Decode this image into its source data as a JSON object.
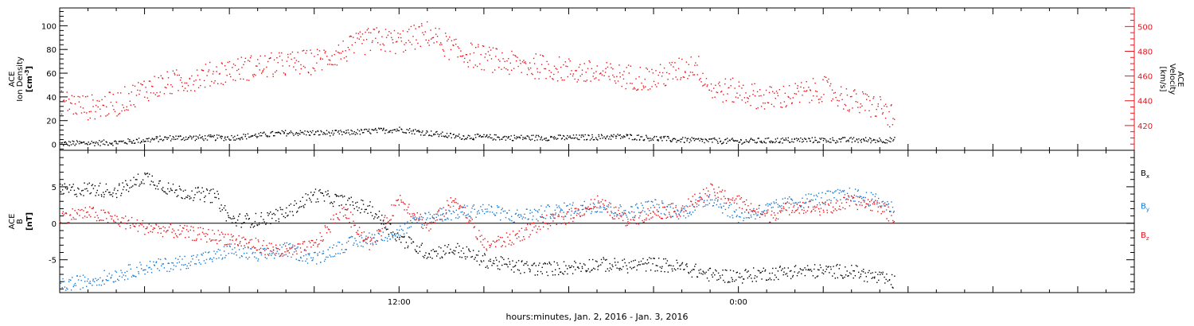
{
  "xaxis_label": "hours:minutes, Jan.  2, 2016 - Jan.  3, 2016",
  "chart_data": [
    {
      "type": "scatter",
      "title": "",
      "ylabel_lines": [
        "ACE",
        "Ion Density"
      ],
      "yunit": "[cm",
      "yunit_sup": "-3",
      "yunit_end": "]",
      "y2label_lines": [
        "ACE",
        "Velocity"
      ],
      "y2unit": "[km/s]",
      "x_ticks": [
        "12:00",
        "0:00"
      ],
      "xlim_hours": [
        0,
        38
      ],
      "ylim": [
        -5,
        115
      ],
      "y_ticks": [
        0,
        20,
        40,
        60,
        80,
        100
      ],
      "y2lim": [
        400,
        515
      ],
      "y2_ticks": [
        420,
        440,
        460,
        480,
        500
      ],
      "grid": false,
      "series": [
        {
          "name": "",
          "axis": "left",
          "color": "#000000",
          "x_hours": [
            0,
            2,
            4,
            6,
            8,
            10,
            12,
            14,
            16,
            18,
            20,
            22,
            24,
            26,
            29.5
          ],
          "y": [
            1,
            2,
            6,
            6,
            10,
            10,
            13,
            7,
            6,
            6,
            7,
            4,
            3,
            4,
            4
          ]
        },
        {
          "name": "",
          "axis": "right",
          "color": "#e8141c",
          "x_hours": [
            0,
            1,
            2,
            3,
            4,
            5,
            6,
            7,
            8,
            9,
            10,
            11,
            12,
            13,
            14,
            15,
            16,
            17,
            18,
            19,
            20,
            21,
            22,
            22.5,
            23,
            24,
            25,
            26,
            27,
            28,
            29,
            29.5
          ],
          "y": [
            440,
            435,
            438,
            450,
            455,
            460,
            465,
            468,
            470,
            472,
            480,
            490,
            488,
            495,
            480,
            475,
            470,
            468,
            465,
            462,
            460,
            458,
            466,
            470,
            450,
            448,
            442,
            445,
            450,
            440,
            435,
            425
          ]
        }
      ]
    },
    {
      "type": "scatter",
      "title": "",
      "ylabel_lines": [
        "ACE",
        "B"
      ],
      "yunit": "[nT]",
      "xlim_hours": [
        0,
        38
      ],
      "ylim": [
        -9.5,
        10
      ],
      "y_ticks": [
        -5,
        0,
        5
      ],
      "grid": false,
      "zero_line": true,
      "series": [
        {
          "name": "B",
          "subscript": "x",
          "color": "#000000",
          "x_hours": [
            0,
            1,
            2,
            2.5,
            3,
            4,
            5,
            5.5,
            6,
            7,
            8,
            9,
            10,
            11,
            12,
            13,
            14,
            15,
            16,
            17,
            18,
            19,
            20,
            21,
            22,
            23,
            24,
            25,
            26,
            27,
            28,
            29,
            29.5
          ],
          "y": [
            4.5,
            4.8,
            4.5,
            5.3,
            6.5,
            4.5,
            4,
            3.8,
            0.5,
            0.5,
            1.5,
            4,
            3,
            2,
            -2,
            -4,
            -3.5,
            -5,
            -5.8,
            -6.2,
            -6,
            -5.5,
            -5.8,
            -5.5,
            -6,
            -7,
            -7.2,
            -6.8,
            -6.5,
            -6.5,
            -6.5,
            -7.5,
            -8
          ]
        },
        {
          "name": "B",
          "subscript": "y",
          "color": "#1878d0",
          "x_hours": [
            0,
            1,
            2,
            3,
            4,
            5,
            5.5,
            6,
            7,
            8,
            9,
            10,
            11,
            12,
            13,
            14,
            15,
            16,
            17,
            18,
            19,
            20,
            21,
            22,
            23,
            24,
            25,
            26,
            27,
            28,
            29,
            29.5
          ],
          "y": [
            -8.5,
            -7.8,
            -7,
            -6,
            -5.5,
            -4.8,
            -4.5,
            -3.5,
            -4.5,
            -3.5,
            -4.8,
            -3,
            -2,
            -1,
            1,
            1.5,
            2,
            1,
            1.5,
            2,
            2.5,
            1.5,
            2.5,
            1.5,
            3.5,
            1,
            2,
            3,
            3.5,
            4,
            3,
            2
          ]
        },
        {
          "name": "B",
          "subscript": "z",
          "color": "#e8141c",
          "x_hours": [
            0,
            1,
            2,
            3,
            4,
            5,
            6,
            7,
            8,
            9,
            10,
            11,
            12,
            13,
            14,
            15,
            16,
            17,
            18,
            19,
            20,
            21,
            22,
            23,
            24,
            25,
            26,
            27,
            28,
            29,
            29.5
          ],
          "y": [
            1,
            1.5,
            0.5,
            -0.5,
            -1,
            -1.5,
            -2,
            -3,
            -4,
            -3,
            2,
            -3,
            3.5,
            -0.5,
            3.5,
            -3,
            -2,
            0,
            1,
            3,
            0.5,
            1.5,
            2,
            4.5,
            3,
            1,
            2.5,
            2,
            3,
            2.5,
            0.5
          ]
        }
      ]
    }
  ]
}
